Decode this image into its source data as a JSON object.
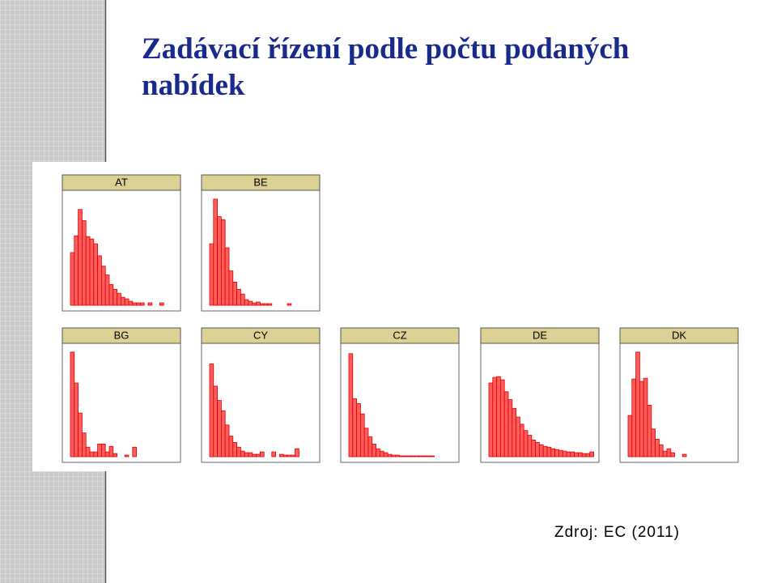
{
  "title_line1": "Zadávací řízení podle počtu podaných",
  "title_line2": "nabídek",
  "source": "Zdroj: EC (2011)",
  "chart_data": [
    {
      "type": "bar",
      "title": "AT",
      "color": "#ff5c5c",
      "ylim": [
        0,
        140
      ],
      "values": [
        66,
        87,
        120,
        106,
        86,
        83,
        77,
        62,
        49,
        38,
        26,
        20,
        15,
        10,
        8,
        5,
        3,
        3,
        3,
        0,
        3,
        0,
        0,
        3
      ]
    },
    {
      "type": "bar",
      "title": "BE",
      "color": "#ff5c5c",
      "ylim": [
        0,
        140
      ],
      "values": [
        77,
        133,
        111,
        107,
        72,
        43,
        29,
        20,
        14,
        7,
        5,
        3,
        4,
        2,
        2,
        2,
        0,
        0,
        0,
        0,
        2
      ]
    },
    {
      "type": "bar",
      "title": "BG",
      "color": "#ff5c5c",
      "ylim": [
        0,
        140
      ],
      "values": [
        132,
        93,
        55,
        30,
        12,
        6,
        6,
        16,
        16,
        6,
        13,
        4,
        0,
        0,
        2,
        0,
        12
      ]
    },
    {
      "type": "bar",
      "title": "CY",
      "color": "#ff5c5c",
      "ylim": [
        0,
        140
      ],
      "values": [
        117,
        89,
        71,
        58,
        40,
        26,
        18,
        12,
        7,
        5,
        5,
        3,
        3,
        6,
        0,
        0,
        6,
        0,
        3,
        2,
        2,
        2,
        10
      ]
    },
    {
      "type": "bar",
      "title": "CZ",
      "color": "#ff5c5c",
      "ylim": [
        0,
        140
      ],
      "values": [
        130,
        73,
        67,
        54,
        36,
        25,
        16,
        10,
        7,
        5,
        3,
        2,
        2,
        1,
        1,
        1,
        1,
        1,
        1,
        1,
        1,
        1
      ]
    },
    {
      "type": "bar",
      "title": "DE",
      "color": "#ff5c5c",
      "ylim": [
        0,
        140
      ],
      "values": [
        93,
        100,
        101,
        97,
        82,
        72,
        61,
        50,
        41,
        33,
        27,
        21,
        18,
        15,
        13,
        12,
        10,
        9,
        8,
        7,
        6,
        6,
        5,
        5,
        4,
        4,
        6
      ]
    },
    {
      "type": "bar",
      "title": "DK",
      "color": "#ff5c5c",
      "ylim": [
        0,
        140
      ],
      "values": [
        52,
        98,
        132,
        95,
        99,
        65,
        35,
        22,
        15,
        7,
        10,
        5,
        0,
        0,
        3
      ]
    }
  ]
}
